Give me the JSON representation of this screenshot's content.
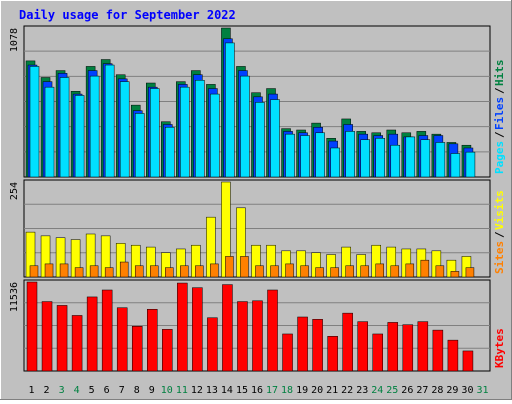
{
  "title": "Daily usage for September 2022",
  "colors": {
    "background": "#C0C0C0",
    "plot_background": "#C0C0C0",
    "title": "#0000FF",
    "hits": "#008040",
    "files": "#0040FF",
    "pages": "#00E0FF",
    "visits": "#FFFF00",
    "sites": "#FF8000",
    "kbytes": "#FF0000",
    "weekend_label": "#008040",
    "weekday_label": "#000000"
  },
  "chart_data": [
    {
      "type": "bar",
      "name": "requests",
      "ymax_label": "1078",
      "ylim": [
        0,
        1078
      ],
      "grid": true,
      "right_labels": [
        "Pages",
        "/",
        "Files",
        "/",
        "Hits"
      ],
      "series": [
        {
          "name": "Hits",
          "values": [
            840,
            720,
            770,
            620,
            800,
            850,
            740,
            520,
            680,
            400,
            690,
            770,
            670,
            1078,
            800,
            610,
            640,
            350,
            340,
            390,
            280,
            420,
            330,
            320,
            340,
            320,
            330,
            310,
            250,
            230
          ]
        },
        {
          "name": "Files",
          "values": [
            810,
            690,
            750,
            600,
            770,
            820,
            710,
            480,
            650,
            380,
            670,
            740,
            640,
            1000,
            770,
            580,
            600,
            330,
            320,
            360,
            260,
            380,
            310,
            300,
            310,
            290,
            300,
            300,
            240,
            210
          ]
        },
        {
          "name": "Pages",
          "values": [
            800,
            650,
            720,
            590,
            730,
            810,
            690,
            460,
            640,
            360,
            650,
            700,
            600,
            970,
            730,
            540,
            560,
            310,
            300,
            320,
            210,
            330,
            270,
            280,
            230,
            290,
            270,
            250,
            170,
            180
          ]
        }
      ]
    },
    {
      "type": "bar",
      "name": "visits",
      "ymax_label": "254",
      "ylim": [
        0,
        254
      ],
      "grid": true,
      "right_labels": [
        "Sites",
        "/",
        "Visits"
      ],
      "series": [
        {
          "name": "Visits",
          "values": [
            120,
            110,
            105,
            100,
            115,
            110,
            90,
            85,
            80,
            65,
            75,
            85,
            160,
            254,
            185,
            85,
            85,
            70,
            70,
            65,
            60,
            80,
            60,
            85,
            80,
            75,
            75,
            70,
            45,
            55
          ]
        },
        {
          "name": "Sites",
          "values": [
            30,
            35,
            35,
            25,
            30,
            25,
            40,
            30,
            30,
            25,
            30,
            30,
            35,
            55,
            55,
            30,
            30,
            35,
            30,
            25,
            25,
            30,
            30,
            35,
            30,
            35,
            45,
            30,
            15,
            25
          ]
        }
      ]
    },
    {
      "type": "bar",
      "name": "kbytes",
      "ymax_label": "11536",
      "ylim": [
        0,
        11536
      ],
      "grid": true,
      "right_labels": [
        "KBytes"
      ],
      "series": [
        {
          "name": "KBytes",
          "values": [
            11536,
            9000,
            8500,
            7200,
            9600,
            10500,
            8200,
            5800,
            8000,
            5400,
            11400,
            10800,
            6900,
            11200,
            9000,
            9100,
            10500,
            4800,
            7000,
            6700,
            4500,
            7500,
            6400,
            4800,
            6300,
            6000,
            6400,
            5300,
            4000,
            2600
          ]
        }
      ]
    }
  ],
  "x_axis": {
    "days": [
      "1",
      "2",
      "3",
      "4",
      "5",
      "6",
      "7",
      "8",
      "9",
      "10",
      "11",
      "12",
      "13",
      "14",
      "15",
      "16",
      "17",
      "18",
      "19",
      "20",
      "21",
      "22",
      "23",
      "24",
      "25",
      "26",
      "27",
      "28",
      "29",
      "30",
      "31"
    ],
    "weekend_days": [
      "3",
      "4",
      "10",
      "11",
      "17",
      "18",
      "24",
      "25",
      "31"
    ]
  }
}
